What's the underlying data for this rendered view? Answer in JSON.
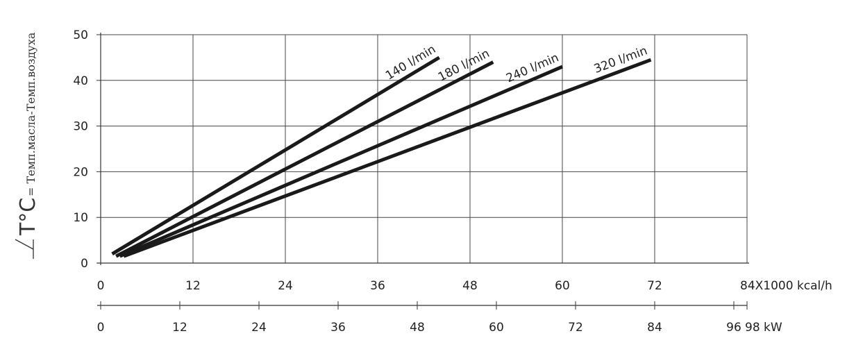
{
  "chart_data": {
    "type": "line",
    "ylabel": {
      "main": "T°C",
      "formula": " = Темп.масла-Темп.воздуха"
    },
    "ylim": [
      0,
      50
    ],
    "yticks": [
      0,
      10,
      20,
      30,
      40,
      50
    ],
    "xlim": [
      0,
      84
    ],
    "xticks": [
      0,
      12,
      24,
      36,
      48,
      60,
      72
    ],
    "xlabel": "84X1000 kcal/h",
    "grid": true,
    "secondary_axis": {
      "ticks": [
        "0",
        "12",
        "24",
        "36",
        "48",
        "60",
        "72",
        "84",
        "96"
      ],
      "end_label": "98 kW"
    },
    "series": [
      {
        "name": "140 l/min",
        "points": [
          [
            1.5,
            2
          ],
          [
            44,
            45
          ]
        ]
      },
      {
        "name": "180 l/min",
        "points": [
          [
            2,
            1.5
          ],
          [
            51,
            44
          ]
        ]
      },
      {
        "name": "240 l/min",
        "points": [
          [
            2.5,
            1.5
          ],
          [
            60,
            43
          ]
        ]
      },
      {
        "name": "320 l/min",
        "points": [
          [
            3,
            1.5
          ],
          [
            71.5,
            44.5
          ]
        ]
      }
    ]
  }
}
